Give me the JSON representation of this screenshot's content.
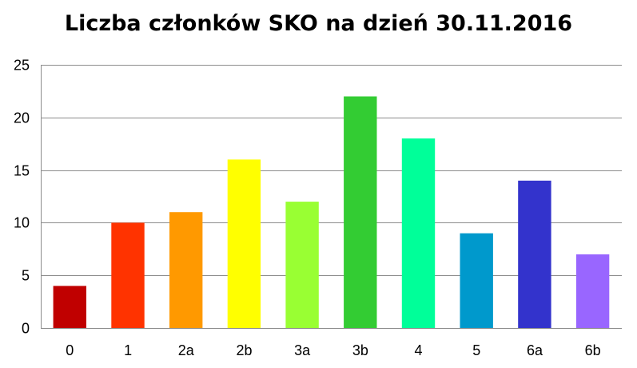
{
  "chart_data": {
    "type": "bar",
    "title": "Liczba członków SKO na dzień 30.11.2016",
    "xlabel": "",
    "ylabel": "",
    "categories": [
      "0",
      "1",
      "2a",
      "2b",
      "3a",
      "3b",
      "4",
      "5",
      "6a",
      "6b"
    ],
    "values": [
      4,
      10,
      11,
      16,
      12,
      22,
      18,
      9,
      14,
      7
    ],
    "colors": [
      "#c00000",
      "#ff3300",
      "#ff9900",
      "#ffff00",
      "#99ff33",
      "#33cc33",
      "#00ff99",
      "#0099cc",
      "#3333cc",
      "#9966ff"
    ],
    "ylim": [
      0,
      25
    ],
    "yticks": [
      "0",
      "5",
      "10",
      "15",
      "20",
      "25"
    ],
    "grid": true,
    "legend": "none"
  }
}
